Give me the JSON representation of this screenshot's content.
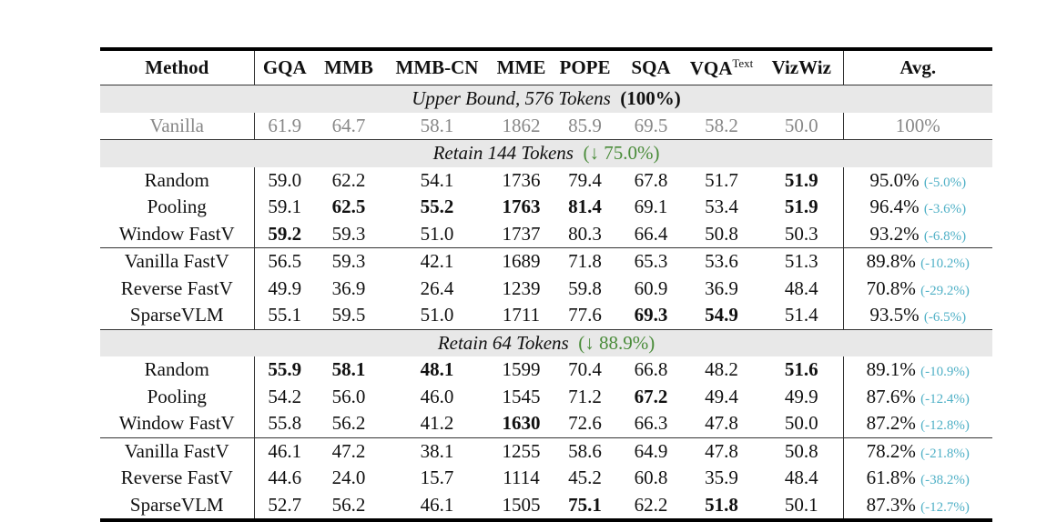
{
  "headers": [
    "Method",
    "GQA",
    "MMB",
    "MMB-CN",
    "MME",
    "POPE",
    "SQA",
    "VQA",
    "VizWiz",
    "Avg."
  ],
  "vqa_sup": "Text",
  "upper_band": {
    "label": "Upper Bound, 576 Tokens",
    "pct": "(100%)"
  },
  "vanilla": [
    "Vanilla",
    "61.9",
    "64.7",
    "58.1",
    "1862",
    "85.9",
    "69.5",
    "58.2",
    "50.0",
    "100%"
  ],
  "groups": [
    {
      "label": "Retain 144 Tokens",
      "reduction": "(↓ 75.0%)",
      "rows": [
        {
          "cells": [
            "Random",
            "59.0",
            "62.2",
            "54.1",
            "1736",
            "79.4",
            "67.8",
            "51.7",
            "51.9"
          ],
          "bold": [
            8
          ],
          "avg": "95.0%",
          "delta": "(-5.0%)"
        },
        {
          "cells": [
            "Pooling",
            "59.1",
            "62.5",
            "55.2",
            "1763",
            "81.4",
            "69.1",
            "53.4",
            "51.9"
          ],
          "bold": [
            2,
            3,
            4,
            5,
            8
          ],
          "avg": "96.4%",
          "delta": "(-3.6%)"
        },
        {
          "cells": [
            "Window FastV",
            "59.2",
            "59.3",
            "51.0",
            "1737",
            "80.3",
            "66.4",
            "50.8",
            "50.3"
          ],
          "bold": [
            1
          ],
          "avg": "93.2%",
          "delta": "(-6.8%)"
        },
        {
          "cells": [
            "Vanilla FastV",
            "56.5",
            "59.3",
            "42.1",
            "1689",
            "71.8",
            "65.3",
            "53.6",
            "51.3"
          ],
          "bold": [],
          "avg": "89.8%",
          "delta": "(-10.2%)",
          "rule": true
        },
        {
          "cells": [
            "Reverse FastV",
            "49.9",
            "36.9",
            "26.4",
            "1239",
            "59.8",
            "60.9",
            "36.9",
            "48.4"
          ],
          "bold": [],
          "avg": "70.8%",
          "delta": "(-29.2%)"
        },
        {
          "cells": [
            "SparseVLM",
            "55.1",
            "59.5",
            "51.0",
            "1711",
            "77.6",
            "69.3",
            "54.9",
            "51.4"
          ],
          "bold": [
            6,
            7
          ],
          "avg": "93.5%",
          "delta": "(-6.5%)"
        }
      ]
    },
    {
      "label": "Retain 64 Tokens",
      "reduction": "(↓ 88.9%)",
      "rows": [
        {
          "cells": [
            "Random",
            "55.9",
            "58.1",
            "48.1",
            "1599",
            "70.4",
            "66.8",
            "48.2",
            "51.6"
          ],
          "bold": [
            1,
            2,
            3,
            8
          ],
          "avg": "89.1%",
          "delta": "(-10.9%)"
        },
        {
          "cells": [
            "Pooling",
            "54.2",
            "56.0",
            "46.0",
            "1545",
            "71.2",
            "67.2",
            "49.4",
            "49.9"
          ],
          "bold": [
            6
          ],
          "avg": "87.6%",
          "delta": "(-12.4%)"
        },
        {
          "cells": [
            "Window FastV",
            "55.8",
            "56.2",
            "41.2",
            "1630",
            "72.6",
            "66.3",
            "47.8",
            "50.0"
          ],
          "bold": [
            4
          ],
          "avg": "87.2%",
          "delta": "(-12.8%)"
        },
        {
          "cells": [
            "Vanilla FastV",
            "46.1",
            "47.2",
            "38.1",
            "1255",
            "58.6",
            "64.9",
            "47.8",
            "50.8"
          ],
          "bold": [],
          "avg": "78.2%",
          "delta": "(-21.8%)",
          "rule": true
        },
        {
          "cells": [
            "Reverse FastV",
            "44.6",
            "24.0",
            "15.7",
            "1114",
            "45.2",
            "60.8",
            "35.9",
            "48.4"
          ],
          "bold": [],
          "avg": "61.8%",
          "delta": "(-38.2%)"
        },
        {
          "cells": [
            "SparseVLM",
            "52.7",
            "56.2",
            "46.1",
            "1505",
            "75.1",
            "62.2",
            "51.8",
            "50.1"
          ],
          "bold": [
            5,
            7
          ],
          "avg": "87.3%",
          "delta": "(-12.7%)"
        }
      ]
    }
  ],
  "colors": {
    "green": "#4a8c3a",
    "delta": "#4fb0c6",
    "band": "#e8e8e8",
    "grey": "#888888"
  }
}
